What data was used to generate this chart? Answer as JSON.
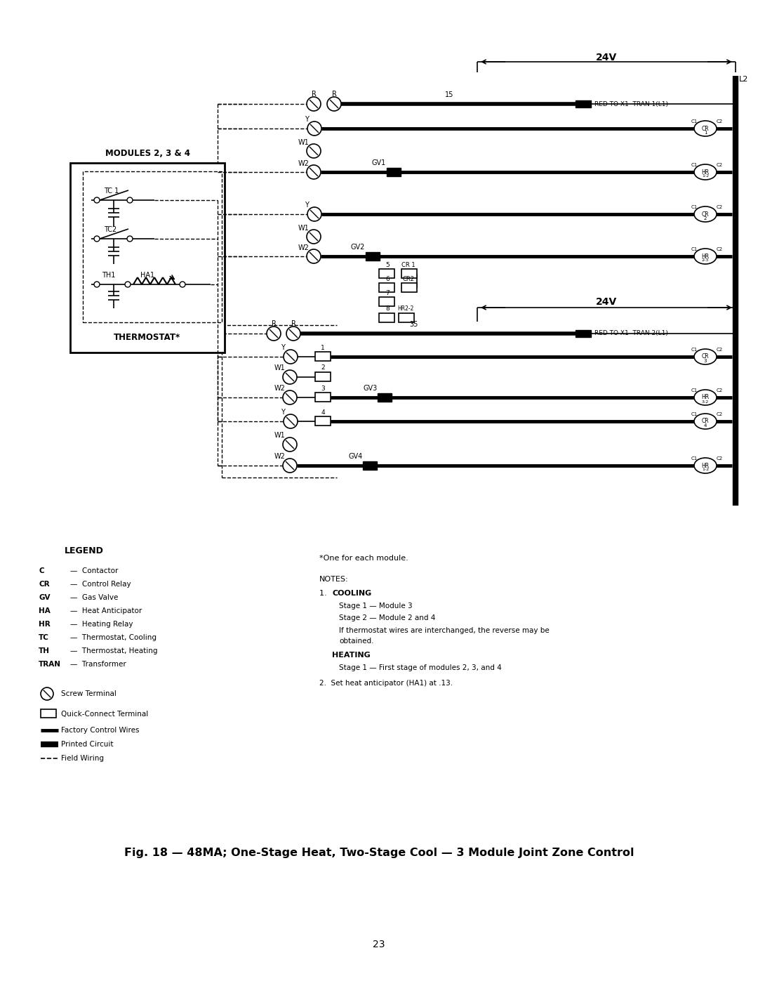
{
  "background_color": "#ffffff",
  "line_color": "#000000",
  "figure_caption": "Fig. 18 — 48MA; One-Stage Heat, Two-Stage Cool — 3 Module Joint Zone Control",
  "page_number": "23",
  "legend_items": [
    [
      "C",
      "Contactor"
    ],
    [
      "CR",
      "Control Relay"
    ],
    [
      "GV",
      "Gas Valve"
    ],
    [
      "HA",
      "Heat Anticipator"
    ],
    [
      "HR",
      "Heating Relay"
    ],
    [
      "TC",
      "Thermostat, Cooling"
    ],
    [
      "TH",
      "Thermostat, Heating"
    ],
    [
      "TRAN",
      "Transformer"
    ]
  ]
}
